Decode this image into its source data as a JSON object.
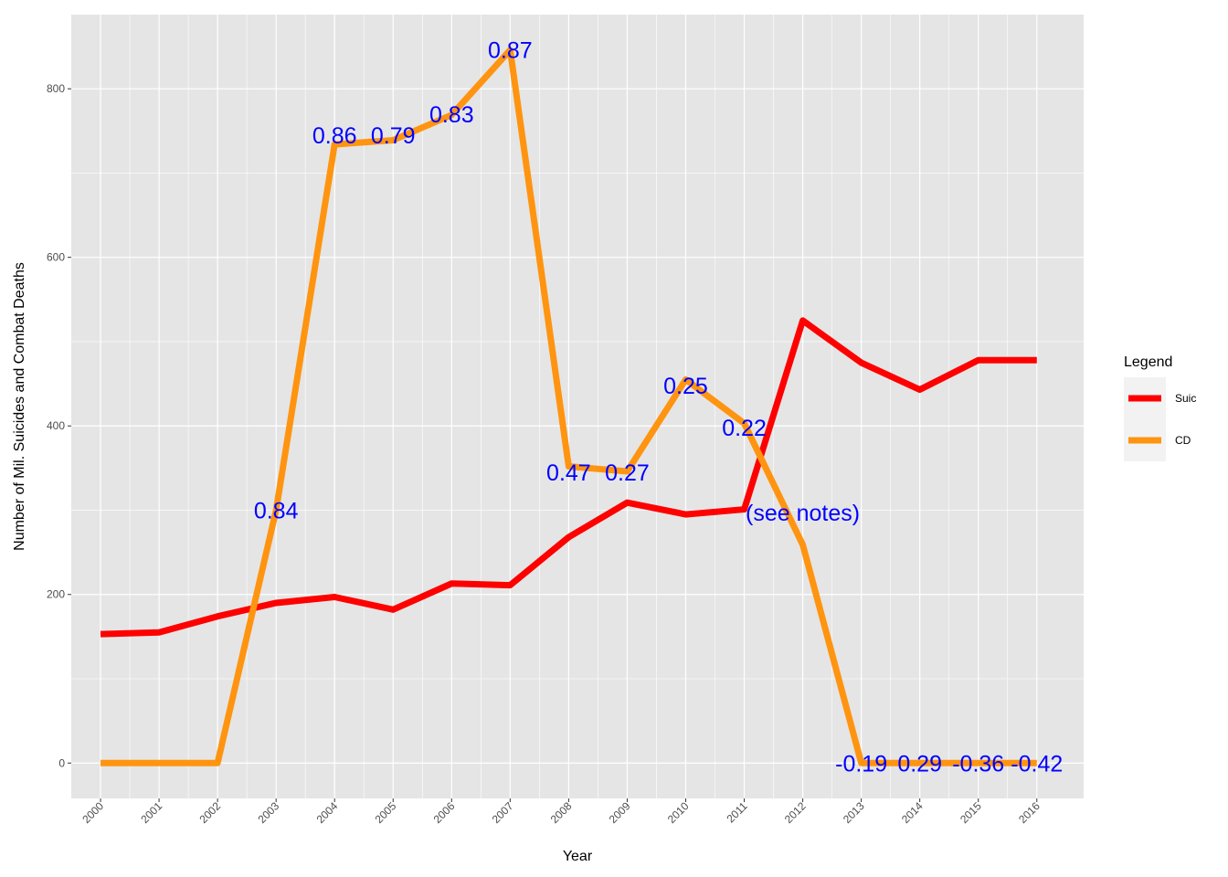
{
  "chart_data": {
    "type": "line",
    "xlabel": "Year",
    "ylabel": "Number of Mil. Suicides and Combat Deaths",
    "x": [
      2000,
      2001,
      2002,
      2003,
      2004,
      2005,
      2006,
      2007,
      2008,
      2009,
      2010,
      2011,
      2012,
      2013,
      2014,
      2015,
      2016
    ],
    "x_tick_labels": [
      "2000",
      "2001",
      "2002",
      "2003",
      "2004",
      "2005",
      "2006",
      "2007",
      "2008",
      "2009",
      "2010",
      "2011",
      "2012",
      "2013",
      "2014",
      "2015",
      "2016"
    ],
    "xlim": [
      1999.5,
      2016.8
    ],
    "ylim": [
      -42,
      888
    ],
    "y_ticks": [
      0,
      200,
      400,
      600,
      800
    ],
    "y_tick_labels": [
      "0",
      "200",
      "400",
      "600",
      "800"
    ],
    "grid": true,
    "series": [
      {
        "name": "Suic",
        "color": "#ff0000",
        "values": [
          153,
          155,
          174,
          190,
          197,
          182,
          213,
          211,
          268,
          309,
          295,
          301,
          525,
          475,
          443,
          478,
          478
        ]
      },
      {
        "name": "CD",
        "color": "#ff9410",
        "values": [
          0,
          0,
          0,
          300,
          734,
          739,
          769,
          846,
          352,
          346,
          455,
          403,
          259,
          0,
          0,
          0,
          0
        ]
      }
    ],
    "annotations": [
      {
        "text": "0.84",
        "x": 2003,
        "y": 300
      },
      {
        "text": "0.86",
        "x": 2004,
        "y": 745
      },
      {
        "text": "0.79",
        "x": 2005,
        "y": 745
      },
      {
        "text": "0.83",
        "x": 2006,
        "y": 770
      },
      {
        "text": "0.87",
        "x": 2007,
        "y": 846
      },
      {
        "text": "0.47",
        "x": 2008,
        "y": 345
      },
      {
        "text": "0.27",
        "x": 2009,
        "y": 345
      },
      {
        "text": "0.25",
        "x": 2010,
        "y": 448
      },
      {
        "text": "0.22",
        "x": 2011,
        "y": 398
      },
      {
        "text": "(see notes)",
        "x": 2012,
        "y": 297
      },
      {
        "text": "-0.19",
        "x": 2013,
        "y": 0
      },
      {
        "text": "0.29",
        "x": 2014,
        "y": 0
      },
      {
        "text": "-0.36",
        "x": 2015,
        "y": 0
      },
      {
        "text": "-0.42",
        "x": 2016,
        "y": 0
      }
    ],
    "legend": {
      "title": "Legend",
      "position": "right",
      "entries": [
        {
          "label": "Suic",
          "color": "#ff0000"
        },
        {
          "label": "CD",
          "color": "#ff9410"
        }
      ]
    },
    "colors": {
      "panel_background": "#e5e5e5",
      "grid": "#ffffff",
      "annotation": "#0000ff"
    }
  }
}
